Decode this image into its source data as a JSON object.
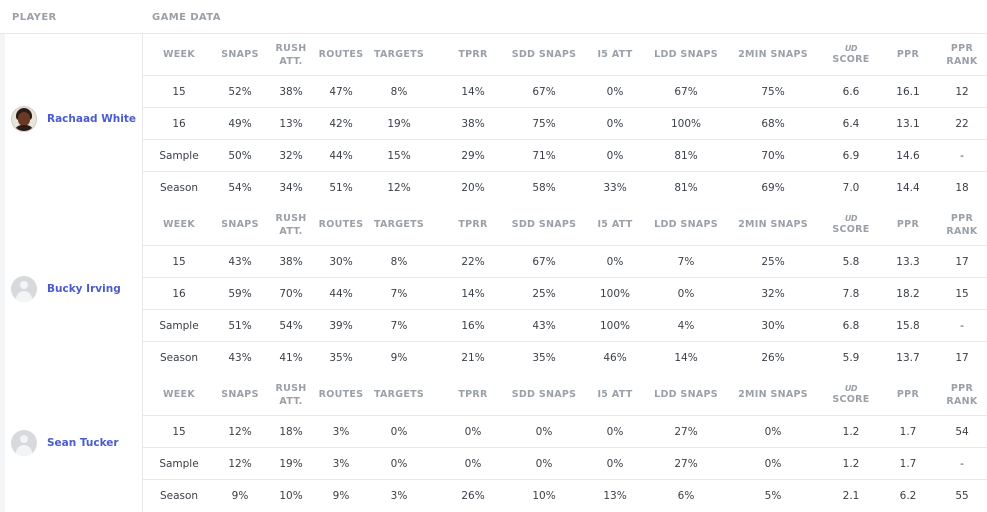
{
  "header": {
    "player_label": "PLAYER",
    "game_data_label": "GAME DATA"
  },
  "columns": [
    {
      "key": "week",
      "label1": "WEEK",
      "label2": ""
    },
    {
      "key": "snaps",
      "label1": "SNAPS",
      "label2": ""
    },
    {
      "key": "rush_att",
      "label1": "RUSH",
      "label2": "ATT."
    },
    {
      "key": "routes",
      "label1": "ROUTES",
      "label2": ""
    },
    {
      "key": "targets",
      "label1": "TARGETS",
      "label2": ""
    },
    {
      "key": "tprr",
      "label1": "TPRR",
      "label2": ""
    },
    {
      "key": "sdd_snaps",
      "label1": "SDD SNAPS",
      "label2": ""
    },
    {
      "key": "i5_att",
      "label1": "I5 ATT",
      "label2": ""
    },
    {
      "key": "ldd_snaps",
      "label1": "LDD SNAPS",
      "label2": ""
    },
    {
      "key": "2min_snaps",
      "label1": "2MIN SNAPS",
      "label2": ""
    },
    {
      "key": "ud_score",
      "label1": "UD",
      "label2": "SCORE"
    },
    {
      "key": "ppr",
      "label1": "PPR",
      "label2": ""
    },
    {
      "key": "ppr_rank",
      "label1": "PPR",
      "label2": "RANK"
    }
  ],
  "players": [
    {
      "name": "Rachaad White",
      "avatar": "player-photo",
      "rows": [
        [
          "15",
          "52%",
          "38%",
          "47%",
          "8%",
          "14%",
          "67%",
          "0%",
          "67%",
          "75%",
          "6.6",
          "16.1",
          "12"
        ],
        [
          "16",
          "49%",
          "13%",
          "42%",
          "19%",
          "38%",
          "75%",
          "0%",
          "100%",
          "68%",
          "6.4",
          "13.1",
          "22"
        ],
        [
          "Sample",
          "50%",
          "32%",
          "44%",
          "15%",
          "29%",
          "71%",
          "0%",
          "81%",
          "70%",
          "6.9",
          "14.6",
          "-"
        ],
        [
          "Season",
          "54%",
          "34%",
          "51%",
          "12%",
          "20%",
          "58%",
          "33%",
          "81%",
          "69%",
          "7.0",
          "14.4",
          "18"
        ]
      ]
    },
    {
      "name": "Bucky Irving",
      "avatar": "generic-user-avatar",
      "rows": [
        [
          "15",
          "43%",
          "38%",
          "30%",
          "8%",
          "22%",
          "67%",
          "0%",
          "7%",
          "25%",
          "5.8",
          "13.3",
          "17"
        ],
        [
          "16",
          "59%",
          "70%",
          "44%",
          "7%",
          "14%",
          "25%",
          "100%",
          "0%",
          "32%",
          "7.8",
          "18.2",
          "15"
        ],
        [
          "Sample",
          "51%",
          "54%",
          "39%",
          "7%",
          "16%",
          "43%",
          "100%",
          "4%",
          "30%",
          "6.8",
          "15.8",
          "-"
        ],
        [
          "Season",
          "43%",
          "41%",
          "35%",
          "9%",
          "21%",
          "35%",
          "46%",
          "14%",
          "26%",
          "5.9",
          "13.7",
          "17"
        ]
      ]
    },
    {
      "name": "Sean Tucker",
      "avatar": "generic-user-avatar",
      "rows": [
        [
          "15",
          "12%",
          "18%",
          "3%",
          "0%",
          "0%",
          "0%",
          "0%",
          "27%",
          "0%",
          "1.2",
          "1.7",
          "54"
        ],
        [
          "Sample",
          "12%",
          "19%",
          "3%",
          "0%",
          "0%",
          "0%",
          "0%",
          "27%",
          "0%",
          "1.2",
          "1.7",
          "-"
        ],
        [
          "Season",
          "9%",
          "10%",
          "9%",
          "3%",
          "26%",
          "10%",
          "13%",
          "6%",
          "5%",
          "2.1",
          "6.2",
          "55"
        ]
      ]
    }
  ]
}
